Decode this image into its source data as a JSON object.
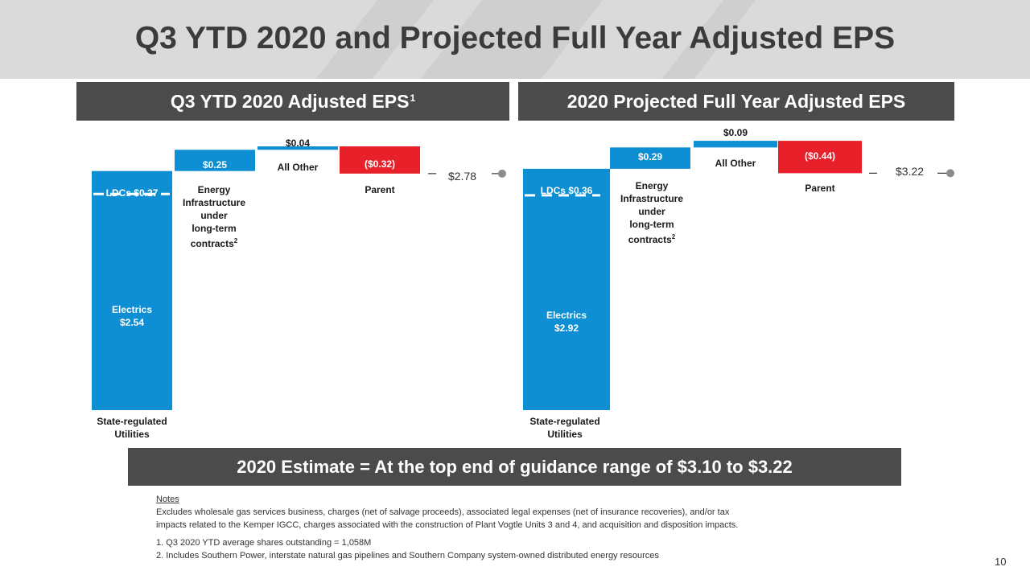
{
  "title": "Q3 YTD 2020 and Projected Full Year Adjusted EPS",
  "colors": {
    "blue": "#0e8ed3",
    "red": "#e8202a",
    "header_bg": "#4b4b4b",
    "dot": "#8c8c8c"
  },
  "chart_data": [
    {
      "type": "bar",
      "subtype": "waterfall",
      "header": "Q3 YTD 2020 Adjusted EPS",
      "header_superscript": "1",
      "bars": [
        {
          "category": "State-regulated Utilities",
          "segments": [
            {
              "name": "Electrics",
              "value": 2.54,
              "label": "Electrics $2.54"
            },
            {
              "name": "LDCs",
              "value": 0.27,
              "label": "LDCs $0.27"
            }
          ]
        },
        {
          "category": "Energy Infrastructure under long-term contracts",
          "value": 0.25,
          "label": "$0.25",
          "footnote": "2"
        },
        {
          "category": "All Other",
          "value": 0.04,
          "label": "$0.04"
        },
        {
          "category": "Parent",
          "value": -0.32,
          "label": "($0.32)"
        }
      ],
      "total": {
        "value": 2.78,
        "label": "$2.78"
      }
    },
    {
      "type": "bar",
      "subtype": "waterfall",
      "header": "2020 Projected Full Year Adjusted EPS",
      "bars": [
        {
          "category": "State-regulated Utilities",
          "segments": [
            {
              "name": "Electrics",
              "value": 2.92,
              "label": "Electrics $2.92"
            },
            {
              "name": "LDCs",
              "value": 0.36,
              "label": "LDCs $0.36"
            }
          ]
        },
        {
          "category": "Energy Infrastructure under long-term contracts",
          "value": 0.29,
          "label": "$0.29",
          "footnote": "2"
        },
        {
          "category": "All Other",
          "value": 0.09,
          "label": "$0.09"
        },
        {
          "category": "Parent",
          "value": -0.44,
          "label": "($0.44)"
        }
      ],
      "total": {
        "value": 3.22,
        "label": "$3.22"
      }
    }
  ],
  "left": {
    "header": "Q3 YTD 2020 Adjusted EPS",
    "header_sup": "1",
    "ldc_label": "LDCs $0.27",
    "electrics_name": "Electrics",
    "electrics_value": "$2.54",
    "state_line1": "State-regulated",
    "state_line2": "Utilities",
    "energy_value": "$0.25",
    "energy_lines": [
      "Energy",
      "Infrastructure",
      "under",
      "long-term",
      "contracts"
    ],
    "energy_sup": "2",
    "other_value": "$0.04",
    "other_name": "All Other",
    "parent_value": "($0.32)",
    "parent_name": "Parent",
    "total": "$2.78"
  },
  "right": {
    "header": "2020 Projected Full Year Adjusted EPS",
    "ldc_label": "LDCs $0.36",
    "electrics_name": "Electrics",
    "electrics_value": "$2.92",
    "state_line1": "State-regulated",
    "state_line2": "Utilities",
    "energy_value": "$0.29",
    "energy_lines": [
      "Energy",
      "Infrastructure",
      "under",
      "long-term",
      "contracts"
    ],
    "energy_sup": "2",
    "other_value": "$0.09",
    "other_name": "All Other",
    "parent_value": "($0.44)",
    "parent_name": "Parent",
    "total": "$3.22"
  },
  "estimate": "2020 Estimate = At the top end of guidance range of $3.10 to $3.22",
  "notes": {
    "heading": "Notes",
    "line1": "Excludes wholesale gas services business, charges (net of salvage proceeds), associated legal expenses (net of insurance recoveries), and/or tax",
    "line2": "impacts related to the Kemper IGCC, charges associated with the construction of Plant Vogtle Units 3 and 4, and acquisition and disposition impacts.",
    "fn1": "1. Q3 2020 YTD average shares outstanding = 1,058M",
    "fn2": "2. Includes Southern Power, interstate natural gas pipelines and Southern Company system-owned distributed energy resources"
  },
  "page_number": "10"
}
